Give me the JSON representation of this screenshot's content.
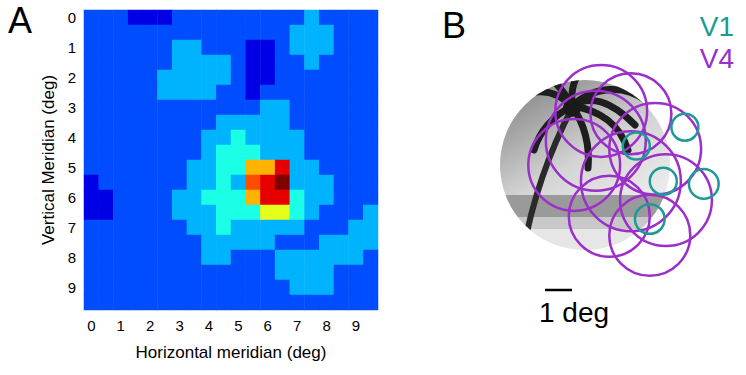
{
  "chart_data": [
    {
      "type": "heatmap",
      "label": "A",
      "x_label": "Horizontal meridian (deg)",
      "y_label": "Vertical Meridian (deg)",
      "x_categories": [
        "0",
        null,
        "1",
        null,
        "2",
        null,
        "3",
        null,
        "4",
        null,
        "5",
        null,
        "6",
        null,
        "7",
        null,
        "8",
        null,
        "9",
        null
      ],
      "y_categories": [
        "0",
        null,
        "1",
        null,
        "2",
        null,
        "3",
        null,
        "4",
        null,
        "5",
        null,
        "6",
        null,
        "7",
        null,
        "8",
        null,
        "9",
        null
      ],
      "color_range": [
        0,
        10
      ],
      "cells": [
        [
          2,
          2,
          2,
          1,
          1,
          1,
          2,
          2,
          2,
          2,
          2,
          2,
          2,
          2,
          2,
          3,
          2,
          2,
          2,
          2
        ],
        [
          2,
          2,
          2,
          2,
          2,
          2,
          2,
          2,
          2,
          2,
          2,
          2,
          2,
          2,
          3,
          3,
          3,
          2,
          2,
          2
        ],
        [
          2,
          2,
          2,
          2,
          2,
          2,
          3,
          3,
          2,
          2,
          2,
          1,
          1,
          2,
          3,
          3,
          3,
          2,
          2,
          2
        ],
        [
          2,
          2,
          2,
          2,
          2,
          2,
          3,
          3,
          3,
          3,
          2,
          1,
          1,
          2,
          2,
          3,
          2,
          2,
          2,
          2
        ],
        [
          2,
          2,
          2,
          2,
          2,
          3,
          3,
          3,
          3,
          3,
          2,
          1,
          1,
          2,
          2,
          2,
          2,
          2,
          2,
          2
        ],
        [
          2,
          2,
          2,
          2,
          2,
          3,
          3,
          3,
          3,
          2,
          2,
          1,
          2,
          2,
          2,
          2,
          2,
          2,
          2,
          2
        ],
        [
          2,
          2,
          2,
          2,
          2,
          2,
          2,
          2,
          2,
          2,
          2,
          2,
          3,
          3,
          2,
          2,
          2,
          2,
          2,
          2
        ],
        [
          2,
          2,
          2,
          2,
          2,
          2,
          2,
          2,
          2,
          3,
          3,
          3,
          3,
          3,
          2,
          2,
          2,
          2,
          2,
          2
        ],
        [
          2,
          2,
          2,
          2,
          2,
          2,
          2,
          2,
          3,
          3,
          4,
          3,
          3,
          3,
          3,
          2,
          2,
          2,
          2,
          2
        ],
        [
          2,
          2,
          2,
          2,
          2,
          2,
          2,
          2,
          3,
          4,
          4,
          4,
          3,
          3,
          3,
          2,
          2,
          2,
          2,
          2
        ],
        [
          2,
          2,
          2,
          2,
          2,
          2,
          2,
          3,
          3,
          4,
          4,
          7,
          7,
          9,
          3,
          3,
          2,
          2,
          2,
          2
        ],
        [
          1,
          2,
          2,
          2,
          2,
          2,
          2,
          3,
          3,
          4,
          3,
          8,
          9,
          10,
          3,
          3,
          3,
          2,
          2,
          2
        ],
        [
          1,
          1,
          2,
          2,
          2,
          2,
          3,
          3,
          4,
          4,
          4,
          7,
          9,
          9,
          4,
          3,
          3,
          2,
          2,
          2
        ],
        [
          1,
          1,
          2,
          2,
          2,
          2,
          3,
          3,
          3,
          4,
          4,
          4,
          6,
          6,
          4,
          3,
          2,
          2,
          2,
          3
        ],
        [
          2,
          2,
          2,
          2,
          2,
          2,
          2,
          3,
          3,
          4,
          3,
          3,
          3,
          3,
          3,
          2,
          2,
          2,
          3,
          3
        ],
        [
          2,
          2,
          2,
          2,
          2,
          2,
          2,
          2,
          3,
          3,
          3,
          3,
          3,
          2,
          2,
          2,
          3,
          3,
          3,
          3
        ],
        [
          2,
          2,
          2,
          2,
          2,
          2,
          2,
          2,
          3,
          3,
          2,
          2,
          2,
          3,
          3,
          3,
          3,
          3,
          3,
          2
        ],
        [
          2,
          2,
          2,
          2,
          2,
          2,
          2,
          2,
          2,
          2,
          2,
          2,
          2,
          3,
          3,
          3,
          3,
          2,
          2,
          2
        ],
        [
          2,
          2,
          2,
          2,
          2,
          2,
          2,
          2,
          2,
          2,
          2,
          2,
          2,
          2,
          3,
          3,
          3,
          2,
          2,
          2
        ],
        [
          2,
          2,
          2,
          2,
          2,
          2,
          2,
          2,
          2,
          2,
          2,
          2,
          2,
          2,
          2,
          2,
          2,
          2,
          2,
          2
        ]
      ]
    },
    {
      "type": "overlay",
      "label": "B",
      "series": [
        {
          "name": "V1",
          "color": "#1e9a96",
          "circles": [
            {
              "x": 1.9,
              "y": -0.7,
              "r": 0.5
            },
            {
              "x": 3.7,
              "y": -1.4,
              "r": 0.5
            },
            {
              "x": 2.9,
              "y": 0.6,
              "r": 0.5
            },
            {
              "x": 4.4,
              "y": 0.7,
              "r": 0.55
            },
            {
              "x": 2.4,
              "y": 2.0,
              "r": 0.55
            }
          ]
        },
        {
          "name": "V4",
          "color": "#9b2fc9",
          "circles": [
            {
              "x": 0.6,
              "y": -2.0,
              "r": 1.7
            },
            {
              "x": 1.7,
              "y": -1.9,
              "r": 1.5
            },
            {
              "x": 0.4,
              "y": -0.9,
              "r": 1.85
            },
            {
              "x": 2.6,
              "y": -0.6,
              "r": 1.7
            },
            {
              "x": 1.7,
              "y": 0.6,
              "r": 1.85
            },
            {
              "x": 3.0,
              "y": 1.3,
              "r": 1.7
            },
            {
              "x": 0.9,
              "y": 1.9,
              "r": 1.5
            },
            {
              "x": 2.4,
              "y": 2.6,
              "r": 1.5
            },
            {
              "x": -0.4,
              "y": 0.0,
              "r": 1.7
            }
          ]
        }
      ],
      "scale_bar": {
        "value": 1,
        "label": "1 deg"
      }
    }
  ]
}
